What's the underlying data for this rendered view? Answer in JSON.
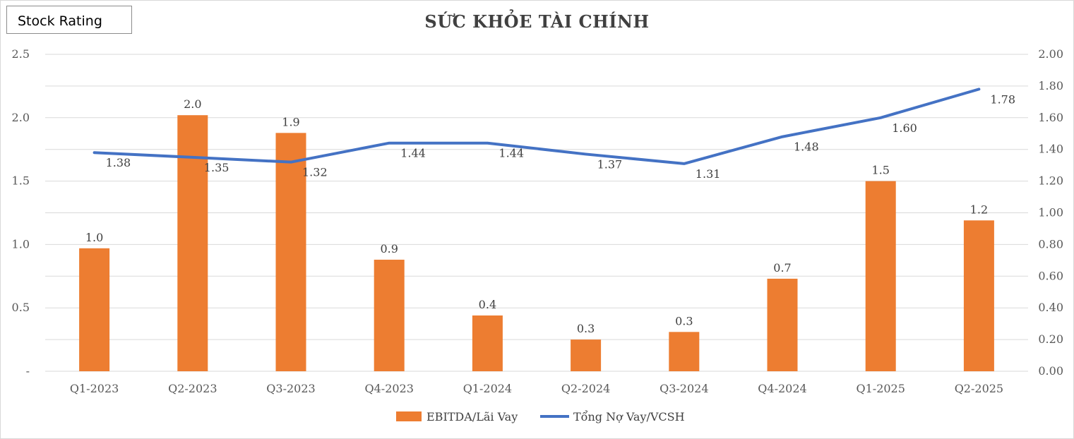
{
  "badge": {
    "label": "Stock Rating"
  },
  "chart_data": {
    "type": "bar",
    "title": "SỨC KHỎE TÀI CHÍNH",
    "categories": [
      "Q1-2023",
      "Q2-2023",
      "Q3-2023",
      "Q4-2023",
      "Q1-2024",
      "Q2-2024",
      "Q3-2024",
      "Q4-2024",
      "Q1-2025",
      "Q2-2025"
    ],
    "series": [
      {
        "name": "EBITDA/Lãi Vay",
        "type": "bar",
        "axis": "left",
        "color": "#ED7D31",
        "values": [
          0.97,
          2.02,
          1.88,
          0.88,
          0.44,
          0.25,
          0.31,
          0.73,
          1.5,
          1.19
        ],
        "labels": [
          "1.0",
          "2.0",
          "1.9",
          "0.9",
          "0.4",
          "0.3",
          "0.3",
          "0.7",
          "1.5",
          "1.2"
        ]
      },
      {
        "name": "Tổng Nợ Vay/VCSH",
        "type": "line",
        "axis": "right",
        "color": "#4472C4",
        "values": [
          1.38,
          1.35,
          1.32,
          1.44,
          1.44,
          1.37,
          1.31,
          1.48,
          1.6,
          1.78
        ],
        "labels": [
          "1.38",
          "1.35",
          "1.32",
          "1.44",
          "1.44",
          "1.37",
          "1.31",
          "1.48",
          "1.60",
          "1.78"
        ]
      }
    ],
    "y_left": {
      "ylim": [
        0,
        2.5
      ],
      "ticks": [
        "-",
        "0.5",
        "1.0",
        "1.5",
        "2.0",
        "2.5"
      ]
    },
    "y_right": {
      "ylim": [
        0,
        2.0
      ],
      "ticks": [
        "0.00",
        "0.20",
        "0.40",
        "0.60",
        "0.80",
        "1.00",
        "1.20",
        "1.40",
        "1.60",
        "1.80",
        "2.00"
      ]
    },
    "grid": true,
    "legend": "bottom"
  }
}
